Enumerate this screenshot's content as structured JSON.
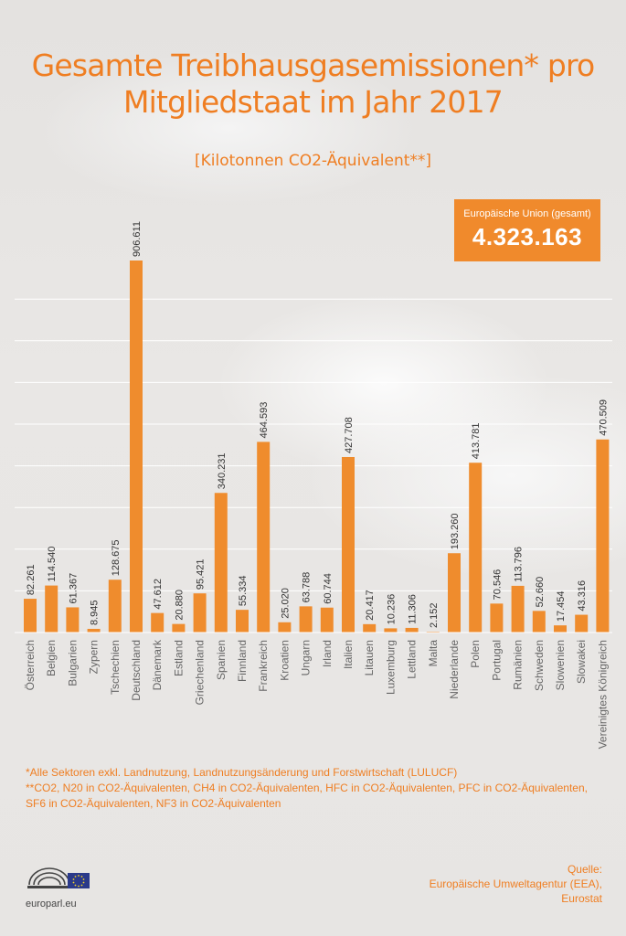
{
  "title": "Gesamte Treibhausgasemissionen* pro\nMitgliedstaat im Jahr 2017",
  "subtitle": "[Kilotonnen CO2-Äquivalent**]",
  "eu_total": {
    "label": "Europäische Union (gesamt)",
    "value": "4.323.163"
  },
  "footnotes": [
    "*Alle Sektoren exkl. Landnutzung, Landnutzungsänderung und Forstwirtschaft (LULUCF)",
    "**CO2, N20 in CO2-Äquivalenten, CH4 in CO2-Äquivalenten, HFC in CO2-Äquivalenten, PFC in CO2-Äquivalenten, SF6 in CO2-Äquivalenten, NF3 in CO2-Äquivalenten"
  ],
  "site": "europarl.eu",
  "source": "Quelle:\nEuropäische Umweltagentur (EEA),\nEurostat",
  "colors": {
    "bar": "#ef8c2d",
    "accent": "#ef7e22",
    "grid": "#ffffff"
  },
  "chart_data": {
    "type": "bar",
    "ylim": [
      0,
      950000
    ],
    "grid": true,
    "categories": [
      "Österreich",
      "Belgien",
      "Bulgarien",
      "Zypern",
      "Tschechien",
      "Deutschland",
      "Dänemark",
      "Estland",
      "Griechenland",
      "Spanien",
      "Finnland",
      "Frankreich",
      "Kroatien",
      "Ungarn",
      "Irland",
      "Italien",
      "Litauen",
      "Luxemburg",
      "Lettland",
      "Malta",
      "Niederlande",
      "Polen",
      "Portugal",
      "Rumänien",
      "Schweden",
      "Slowenien",
      "Slowakei",
      "Vereinigtes Königreich"
    ],
    "values": [
      82261,
      114540,
      61367,
      8945,
      128675,
      906611,
      47612,
      20880,
      95421,
      340231,
      55334,
      464593,
      25020,
      63788,
      60744,
      427708,
      20417,
      10236,
      11306,
      2152,
      193260,
      413781,
      70546,
      113796,
      52660,
      17454,
      43316,
      470509
    ],
    "value_labels": [
      "82.261",
      "114.540",
      "61.367",
      "8.945",
      "128.675",
      "906.611",
      "47.612",
      "20.880",
      "95.421",
      "340.231",
      "55.334",
      "464.593",
      "25.020",
      "63.788",
      "60.744",
      "427.708",
      "20.417",
      "10.236",
      "11.306",
      "2.152",
      "193.260",
      "413.781",
      "70.546",
      "113.796",
      "52.660",
      "17.454",
      "43.316",
      "470.509"
    ]
  }
}
